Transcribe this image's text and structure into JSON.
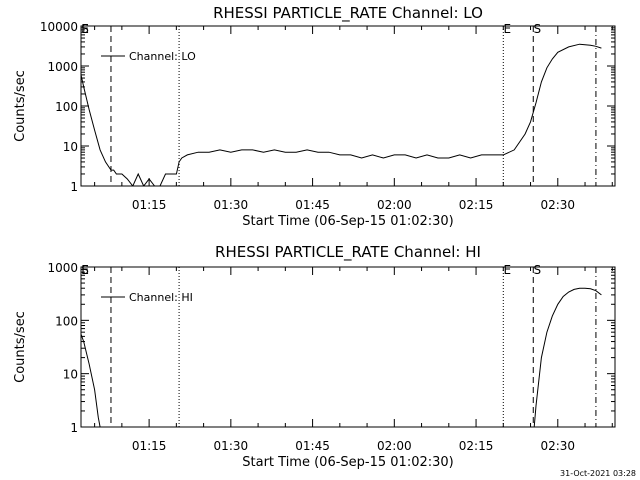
{
  "footer_timestamp": "31-Oct-2021 03:28",
  "chart_data": [
    {
      "type": "line",
      "title": "RHESSI PARTICLE_RATE Channel: LO",
      "xlabel": "Start Time (06-Sep-15 01:02:30)",
      "ylabel": "Counts/sec",
      "yscale": "log",
      "ylim": [
        1,
        10000
      ],
      "xlim": [
        "01:02:30",
        "02:40:30"
      ],
      "grid": false,
      "legend_position": "top-left",
      "yticks": [
        {
          "value": 1,
          "label": "1"
        },
        {
          "value": 10,
          "label": "10"
        },
        {
          "value": 100,
          "label": "100"
        },
        {
          "value": 1000,
          "label": "1000"
        },
        {
          "value": 10000,
          "label": "10000"
        }
      ],
      "xticks": [
        "01:15",
        "01:30",
        "01:45",
        "02:00",
        "02:15",
        "02:30"
      ],
      "series": [
        {
          "name": "Channel: LO",
          "x": [
            "01:02:30",
            "01:03:00",
            "01:04:00",
            "01:05:00",
            "01:06:00",
            "01:07:00",
            "01:08:00",
            "01:08:30",
            "01:09:00",
            "01:10:00",
            "01:11:00",
            "01:12:00",
            "01:13:00",
            "01:14:00",
            "01:15:00",
            "01:16:00",
            "01:17:00",
            "01:18:00",
            "01:19:00",
            "01:20:00",
            "01:20:30",
            "01:21:00",
            "01:22:00",
            "01:24:00",
            "01:26:00",
            "01:28:00",
            "01:30:00",
            "01:32:00",
            "01:34:00",
            "01:36:00",
            "01:38:00",
            "01:40:00",
            "01:42:00",
            "01:44:00",
            "01:46:00",
            "01:48:00",
            "01:50:00",
            "01:52:00",
            "01:54:00",
            "01:56:00",
            "01:58:00",
            "02:00:00",
            "02:02:00",
            "02:04:00",
            "02:06:00",
            "02:08:00",
            "02:10:00",
            "02:12:00",
            "02:14:00",
            "02:16:00",
            "02:18:00",
            "02:20:00",
            "02:22:00",
            "02:24:00",
            "02:25:00",
            "02:26:00",
            "02:27:00",
            "02:28:00",
            "02:29:00",
            "02:30:00",
            "02:32:00",
            "02:34:00",
            "02:36:00",
            "02:37:00",
            "02:38:00"
          ],
          "y": [
            600,
            300,
            80,
            25,
            8,
            4,
            2.5,
            2.5,
            2,
            2,
            1.5,
            1,
            2,
            1,
            1.5,
            1,
            1,
            2,
            2,
            2,
            4,
            5,
            6,
            7,
            7,
            8,
            7,
            8,
            8,
            7,
            8,
            7,
            7,
            8,
            7,
            7,
            6,
            6,
            5,
            6,
            5,
            6,
            6,
            5,
            6,
            5,
            5,
            6,
            5,
            6,
            6,
            6,
            8,
            20,
            40,
            120,
            400,
            900,
            1500,
            2200,
            3000,
            3500,
            3300,
            3100,
            2800
          ]
        }
      ],
      "markers": [
        {
          "label": "E",
          "time": "01:02:30",
          "style": "dotted"
        },
        {
          "label": "S",
          "time": "01:02:30",
          "style": "dashed"
        },
        {
          "label": "",
          "time": "01:08:00",
          "style": "dashed"
        },
        {
          "label": "",
          "time": "01:20:30",
          "style": "dotted"
        },
        {
          "label": "E",
          "time": "02:20:00",
          "style": "dotted"
        },
        {
          "label": "S",
          "time": "02:25:30",
          "style": "dashed"
        },
        {
          "label": "",
          "time": "02:37:00",
          "style": "dashdot"
        }
      ]
    },
    {
      "type": "line",
      "title": "RHESSI PARTICLE_RATE Channel: HI",
      "xlabel": "Start Time (06-Sep-15 01:02:30)",
      "ylabel": "Counts/sec",
      "yscale": "log",
      "ylim": [
        1,
        1000
      ],
      "xlim": [
        "01:02:30",
        "02:40:30"
      ],
      "grid": false,
      "legend_position": "top-left",
      "yticks": [
        {
          "value": 1,
          "label": "1"
        },
        {
          "value": 10,
          "label": "10"
        },
        {
          "value": 100,
          "label": "100"
        },
        {
          "value": 1000,
          "label": "1000"
        }
      ],
      "xticks": [
        "01:15",
        "01:30",
        "01:45",
        "02:00",
        "02:15",
        "02:30"
      ],
      "series": [
        {
          "name": "Channel: HI",
          "x": [
            "01:02:30",
            "01:03:00",
            "01:04:00",
            "01:05:00",
            "01:05:40",
            "01:06:00",
            "02:25:40",
            "02:26:00",
            "02:27:00",
            "02:28:00",
            "02:29:00",
            "02:30:00",
            "02:31:00",
            "02:32:00",
            "02:33:00",
            "02:34:00",
            "02:35:00",
            "02:36:00",
            "02:37:00",
            "02:38:00"
          ],
          "y": [
            55,
            40,
            15,
            5,
            1.5,
            1,
            1,
            2.5,
            20,
            60,
            120,
            200,
            280,
            340,
            380,
            400,
            400,
            390,
            360,
            300
          ]
        }
      ],
      "markers": [
        {
          "label": "E",
          "time": "01:02:30",
          "style": "dotted"
        },
        {
          "label": "S",
          "time": "01:02:30",
          "style": "dashed"
        },
        {
          "label": "",
          "time": "01:08:00",
          "style": "dashed"
        },
        {
          "label": "",
          "time": "01:20:30",
          "style": "dotted"
        },
        {
          "label": "E",
          "time": "02:20:00",
          "style": "dotted"
        },
        {
          "label": "S",
          "time": "02:25:30",
          "style": "dashed"
        },
        {
          "label": "",
          "time": "02:37:00",
          "style": "dashdot"
        }
      ]
    }
  ]
}
